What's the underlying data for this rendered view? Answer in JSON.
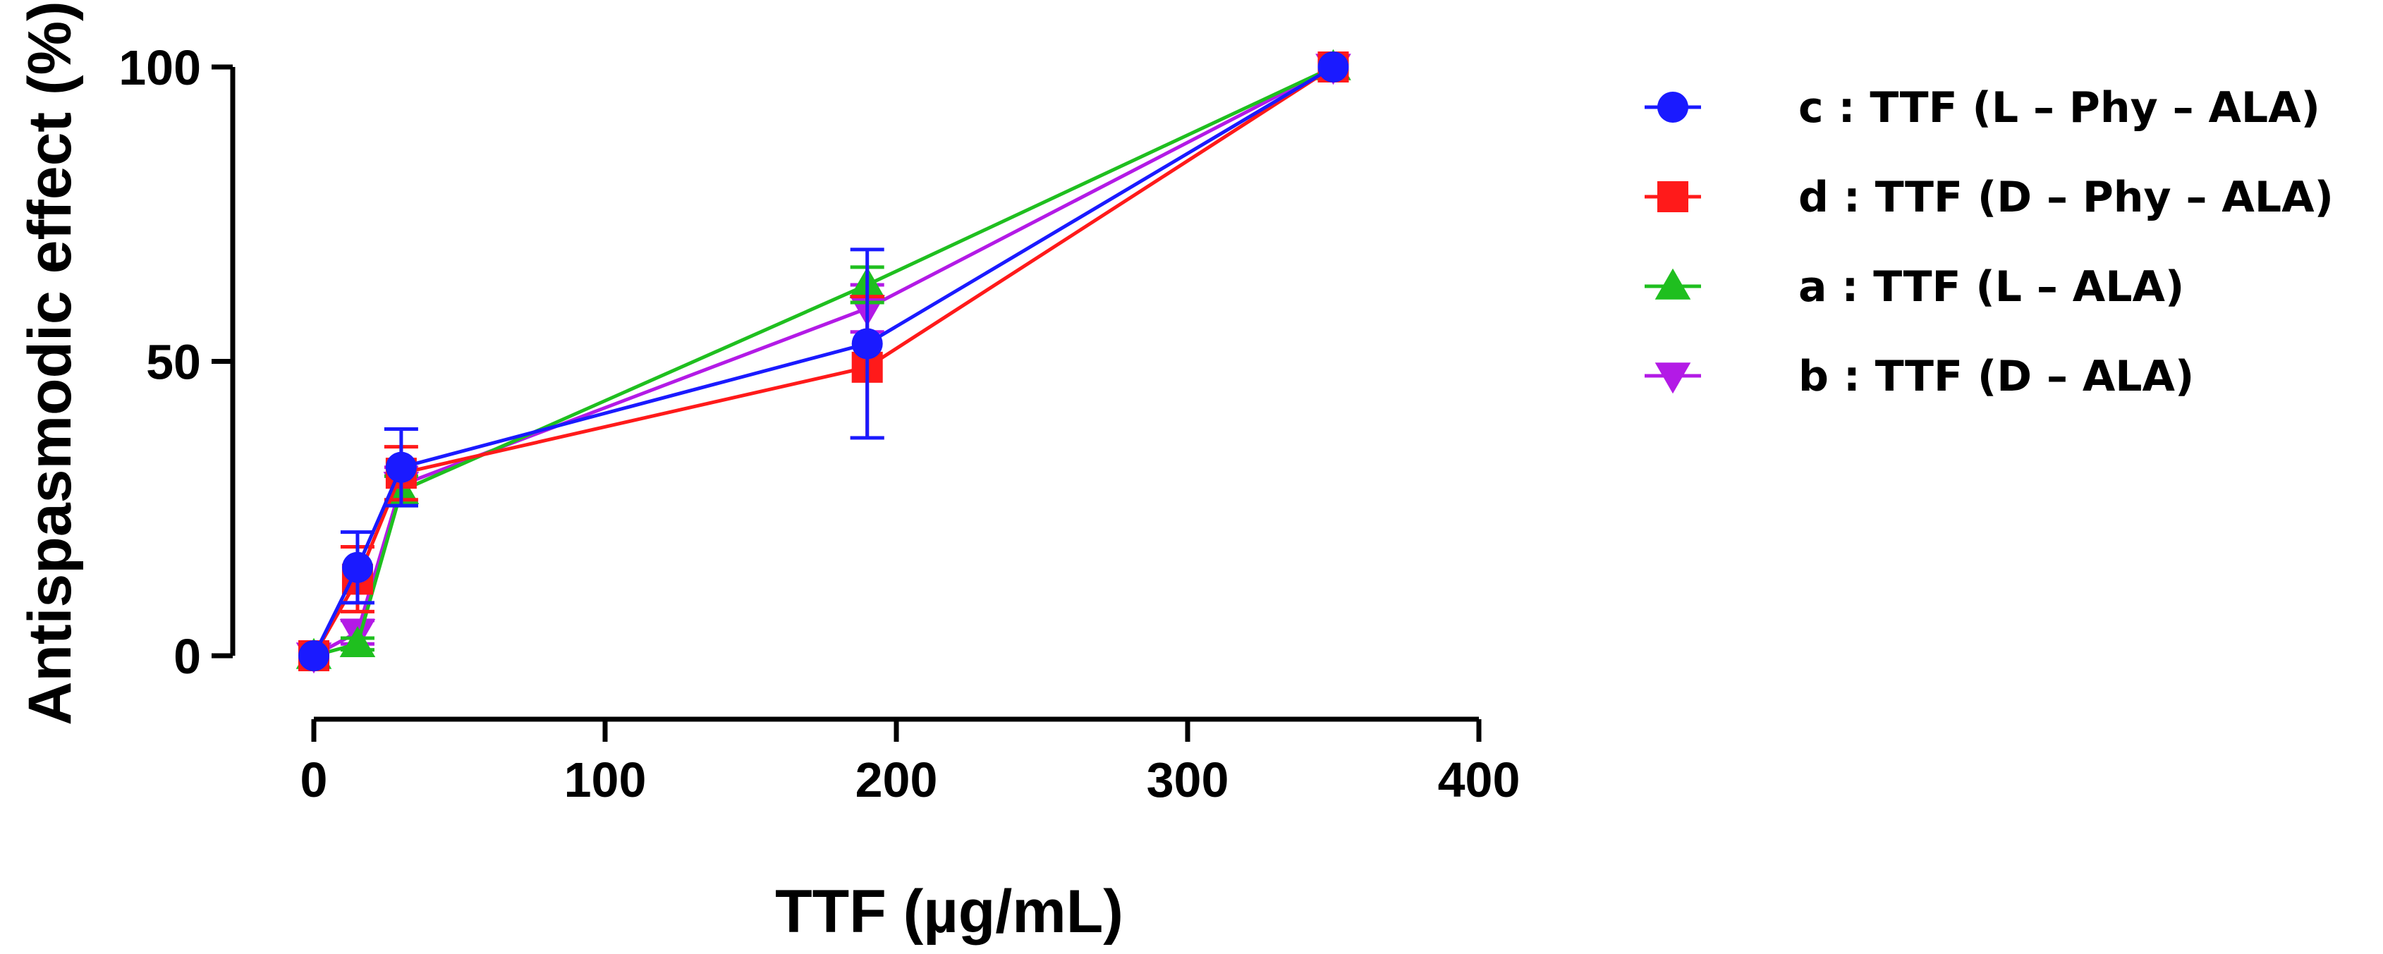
{
  "chart_data": {
    "type": "line",
    "xlabel": "TTF (µg/mL)",
    "ylabel": "Antispasmodic effect (%)",
    "xlim": [
      0,
      400
    ],
    "ylim": [
      0,
      100
    ],
    "xticks": [
      0,
      100,
      200,
      300,
      400
    ],
    "yticks": [
      0,
      50,
      100
    ],
    "grid": false,
    "legend_position": "right",
    "series": [
      {
        "name": "c : TTF (L – Phy – ALA)",
        "color": "#1a1aff",
        "marker": "circle",
        "x": [
          0,
          15,
          30,
          190,
          350
        ],
        "y": [
          0,
          15,
          32,
          53,
          100
        ],
        "err": [
          0,
          6,
          6.5,
          16,
          0
        ]
      },
      {
        "name": "d : TTF (D – Phy – ALA)",
        "color": "#ff1a1a",
        "marker": "square",
        "x": [
          0,
          15,
          30,
          190,
          350
        ],
        "y": [
          0,
          13,
          31,
          49,
          100
        ],
        "err": [
          0,
          5.5,
          4.5,
          12,
          0
        ]
      },
      {
        "name": "a : TTF (L – ALA)",
        "color": "#1fbf1f",
        "marker": "triangle-up",
        "x": [
          0,
          15,
          30,
          190,
          350
        ],
        "y": [
          0,
          2,
          28,
          63,
          100
        ],
        "err": [
          0,
          1,
          2.5,
          3,
          0
        ]
      },
      {
        "name": "b : TTF (D – ALA)",
        "color": "#b31ae6",
        "marker": "triangle-down",
        "x": [
          0,
          15,
          30,
          190,
          350
        ],
        "y": [
          0,
          4,
          29,
          59,
          100
        ],
        "err": [
          0,
          2,
          3,
          4,
          0
        ]
      }
    ]
  }
}
